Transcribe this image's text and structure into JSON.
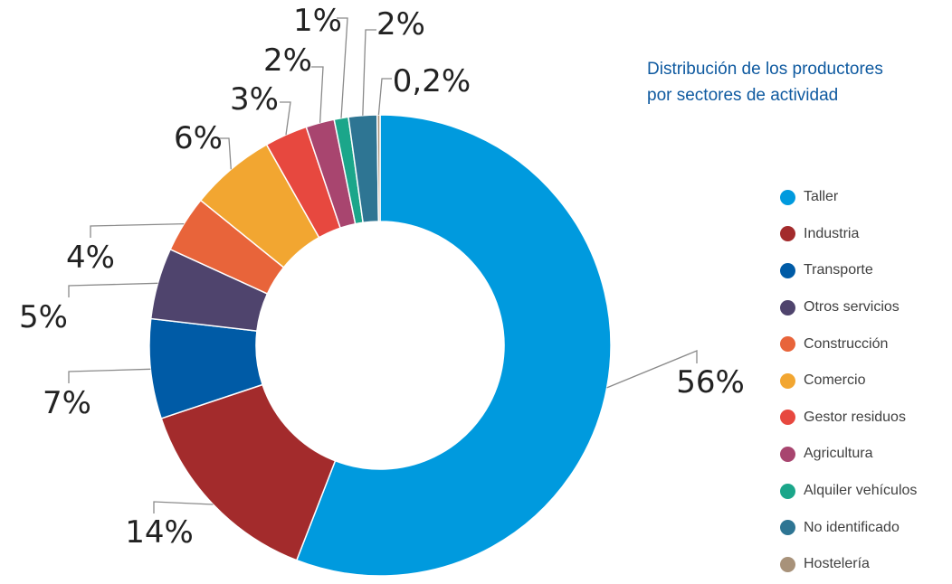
{
  "chart_data": {
    "type": "pie",
    "title_lines": [
      "Distribución de los productores",
      "por sectores de actividad"
    ],
    "categories": [
      "Taller",
      "Industria",
      "Transporte",
      "Otros servicios",
      "Construcción",
      "Comercio",
      "Gestor residuos",
      "Agricultura",
      "Alquiler vehículos",
      "No identificado",
      "Hostelería"
    ],
    "values": [
      56,
      14,
      7,
      5,
      4,
      6,
      3,
      2,
      1,
      2,
      0.2
    ],
    "value_labels": [
      "56%",
      "14%",
      "7%",
      "5%",
      "4%",
      "6%",
      "3%",
      "2%",
      "1%",
      "2%",
      "0,2%"
    ],
    "colors": [
      "#009ade",
      "#a32b2c",
      "#005ba6",
      "#4f446d",
      "#e8643a",
      "#f2a631",
      "#e7483f",
      "#a8456f",
      "#1ba68a",
      "#2e7593",
      "#a8927a"
    ],
    "donut": true,
    "legend_position": "right"
  }
}
